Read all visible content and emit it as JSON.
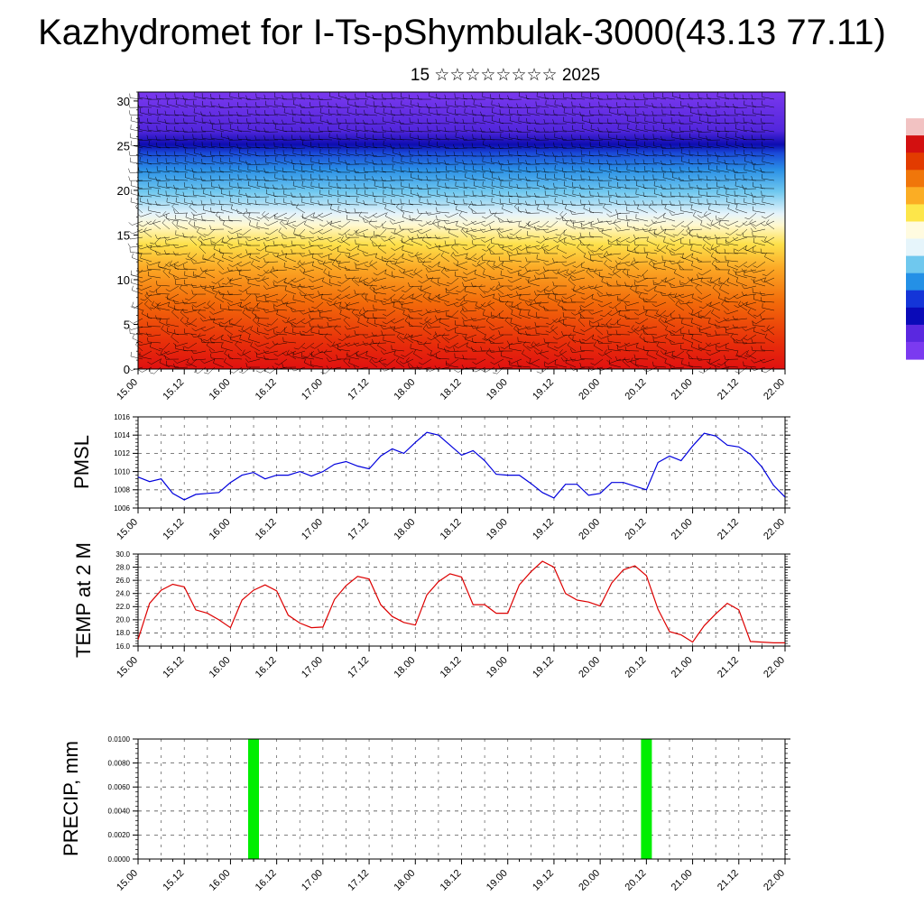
{
  "title": "Kazhydromet for I-Ts-pShymbulak-3000(43.13 77.11)",
  "subtitle": "15 ☆☆☆☆☆☆☆☆ 2025",
  "time_ticks": [
    "15.00",
    "15.12",
    "16.00",
    "16.12",
    "17.00",
    "17.12",
    "18.00",
    "18.12",
    "19.00",
    "19.12",
    "20.00",
    "20.12",
    "21.00",
    "21.12",
    "22.00"
  ],
  "chart_data": [
    {
      "type": "heatmap",
      "title": "",
      "xlabel": "",
      "ylabel": "",
      "x": [
        "15.00",
        "15.12",
        "16.00",
        "16.12",
        "17.00",
        "17.12",
        "18.00",
        "18.12",
        "19.00",
        "19.12",
        "20.00",
        "20.12",
        "21.00",
        "21.12",
        "22.00"
      ],
      "ylim": [
        0,
        31
      ],
      "yticks": [
        0,
        5,
        10,
        15,
        20,
        25,
        30
      ],
      "overlay": "wind barbs",
      "colorbar": {
        "colors": [
          "#ffffff",
          "#f2c2c2",
          "#d31010",
          "#e23b00",
          "#f0760a",
          "#fbad24",
          "#fde64a",
          "#fffbe0",
          "#e6f5fb",
          "#6fc8ee",
          "#2490e6",
          "#1435d8",
          "#0a0ab8",
          "#5a28e0",
          "#7b3af0"
        ]
      }
    },
    {
      "type": "line",
      "title": "",
      "xlabel": "",
      "ylabel": "PMSL",
      "ylim": [
        1006,
        1016
      ],
      "yticks": [
        "1006",
        "1008",
        "1010",
        "1012",
        "1014",
        "1016"
      ],
      "color": "#0000dd",
      "x": [
        "15.00",
        "15.03",
        "15.06",
        "15.09",
        "15.12",
        "15.15",
        "15.18",
        "15.21",
        "16.00",
        "16.03",
        "16.06",
        "16.09",
        "16.12",
        "16.15",
        "16.18",
        "16.21",
        "17.00",
        "17.03",
        "17.06",
        "17.09",
        "17.12",
        "17.15",
        "17.18",
        "17.21",
        "18.00",
        "18.03",
        "18.06",
        "18.09",
        "18.12",
        "18.15",
        "18.18",
        "18.21",
        "19.00",
        "19.03",
        "19.06",
        "19.09",
        "19.12",
        "19.15",
        "19.18",
        "19.21",
        "20.00",
        "20.03",
        "20.06",
        "20.09",
        "20.12",
        "20.15",
        "20.18",
        "20.21",
        "21.00",
        "21.03",
        "21.06",
        "21.09",
        "21.12",
        "21.15",
        "21.18",
        "21.21",
        "22.00"
      ],
      "values": [
        1009.4,
        1008.9,
        1009.2,
        1007.6,
        1006.9,
        1007.5,
        1007.6,
        1007.7,
        1008.8,
        1009.6,
        1009.9,
        1009.2,
        1009.6,
        1009.6,
        1010.0,
        1009.5,
        1010.0,
        1010.8,
        1011.1,
        1010.6,
        1010.3,
        1011.7,
        1012.5,
        1012.0,
        1013.2,
        1014.3,
        1014.0,
        1012.9,
        1011.8,
        1012.3,
        1011.2,
        1009.7,
        1009.6,
        1009.6,
        1008.7,
        1007.7,
        1007.1,
        1008.6,
        1008.6,
        1007.4,
        1007.6,
        1008.8,
        1008.8,
        1008.4,
        1008.0,
        1011.0,
        1011.7,
        1011.2,
        1012.8,
        1014.2,
        1013.9,
        1012.9,
        1012.7,
        1011.9,
        1010.5,
        1008.5,
        1007.2
      ]
    },
    {
      "type": "line",
      "title": "",
      "xlabel": "",
      "ylabel": "TEMP at 2 M",
      "ylim": [
        16,
        30
      ],
      "yticks": [
        "16.0",
        "18.0",
        "20.0",
        "22.0",
        "24.0",
        "26.0",
        "28.0",
        "30.0"
      ],
      "color": "#dd0000",
      "x": [
        "15.00",
        "15.03",
        "15.06",
        "15.09",
        "15.12",
        "15.15",
        "15.18",
        "15.21",
        "16.00",
        "16.03",
        "16.06",
        "16.09",
        "16.12",
        "16.15",
        "16.18",
        "16.21",
        "17.00",
        "17.03",
        "17.06",
        "17.09",
        "17.12",
        "17.15",
        "17.18",
        "17.21",
        "18.00",
        "18.03",
        "18.06",
        "18.09",
        "18.12",
        "18.15",
        "18.18",
        "18.21",
        "19.00",
        "19.03",
        "19.06",
        "19.09",
        "19.12",
        "19.15",
        "19.18",
        "19.21",
        "20.00",
        "20.03",
        "20.06",
        "20.09",
        "20.12",
        "20.15",
        "20.18",
        "20.21",
        "21.00",
        "21.03",
        "21.06",
        "21.09",
        "21.12",
        "21.15",
        "21.18",
        "21.21",
        "22.00"
      ],
      "values": [
        17.0,
        22.5,
        24.5,
        25.4,
        25.0,
        21.5,
        21.0,
        20.0,
        18.8,
        23.0,
        24.5,
        25.3,
        24.4,
        20.7,
        19.5,
        18.8,
        18.9,
        23.1,
        25.2,
        26.6,
        26.2,
        22.3,
        20.5,
        19.6,
        19.2,
        23.8,
        25.8,
        27.0,
        26.5,
        22.3,
        22.3,
        21.0,
        21.0,
        25.3,
        27.3,
        28.9,
        28.0,
        24.0,
        23.0,
        22.7,
        22.1,
        25.6,
        27.6,
        28.2,
        26.7,
        21.6,
        18.2,
        17.7,
        16.6,
        19.1,
        20.9,
        22.5,
        21.5,
        16.7,
        16.6,
        16.5,
        16.5
      ]
    },
    {
      "type": "bar",
      "title": "",
      "xlabel": "",
      "ylabel": "PRECIP, mm",
      "ylim": [
        0,
        0.01
      ],
      "yticks": [
        "0.0000",
        "0.0020",
        "0.0040",
        "0.0060",
        "0.0080",
        "0.0100"
      ],
      "color": "#00ee00",
      "categories": [
        "16.06",
        "20.12"
      ],
      "values": [
        0.01,
        0.01
      ]
    }
  ]
}
